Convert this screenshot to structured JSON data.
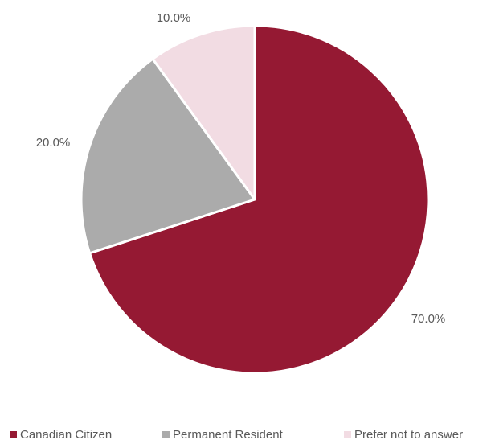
{
  "chart_data": {
    "type": "pie",
    "categories": [
      "Canadian Citizen",
      "Permanent Resident",
      "Prefer not to answer"
    ],
    "values": [
      70.0,
      20.0,
      10.0
    ],
    "data_labels": [
      "70.0%",
      "20.0%",
      "10.0%"
    ],
    "colors": [
      "#951933",
      "#ababab",
      "#f2dce3"
    ],
    "slice_border_color": "#ffffff",
    "start_angle_deg": 0,
    "direction": "clockwise",
    "legend_position": "bottom",
    "legend_entries": [
      "Canadian Citizen",
      "Permanent Resident",
      "Prefer not to answer"
    ]
  }
}
